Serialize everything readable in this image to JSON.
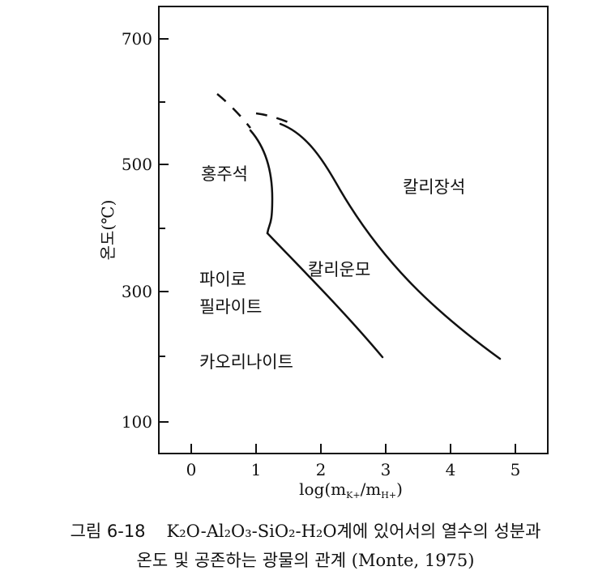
{
  "diagram": {
    "y_axis_title": "온도(℃)",
    "x_axis_title": "log(m",
    "x_axis_title_k": "K+",
    "x_axis_title_sep": "/m",
    "x_axis_title_h": "H+",
    "x_axis_title_end": ")",
    "y_ticks": [
      "100",
      "300",
      "500",
      "700"
    ],
    "x_ticks": [
      "0",
      "1",
      "2",
      "3",
      "4",
      "5"
    ],
    "regions": {
      "hongjuseok": "홍주석",
      "kalijangseok": "칼리장석",
      "kaliunmo": "칼리운모",
      "pyro_line1": "파이로",
      "pyro_line2": "필라이트",
      "kaolinite": "카오리나이트"
    }
  },
  "caption": {
    "fig_label": "그림 6-18",
    "line1": "K₂O-Al₂O₃-SiO₂-H₂O계에 있어서의 열수의 성분과",
    "line2": "온도 및 공존하는 광물의 관계 (Monte, 1975)"
  }
}
